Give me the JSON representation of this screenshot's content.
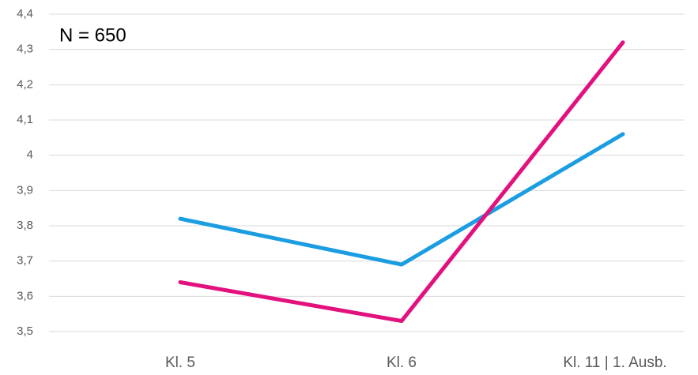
{
  "chart_data": {
    "type": "line",
    "annotation": "N =  650",
    "categories": [
      "Kl. 5",
      "Kl. 6",
      "Kl. 11 | 1. Ausb."
    ],
    "series": [
      {
        "color": "#1b9de2",
        "values": [
          3.82,
          3.69,
          4.06
        ]
      },
      {
        "color": "#e2117e",
        "values": [
          3.64,
          3.53,
          4.32
        ]
      }
    ],
    "ylim": [
      3.5,
      4.4
    ],
    "yticks": [
      {
        "value": 3.5,
        "label": "3,5"
      },
      {
        "value": 3.6,
        "label": "3,6"
      },
      {
        "value": 3.7,
        "label": "3,7"
      },
      {
        "value": 3.8,
        "label": "3,8"
      },
      {
        "value": 3.9,
        "label": "3,9"
      },
      4,
      {
        "value": 4.1,
        "label": "4,1"
      },
      {
        "value": 4.2,
        "label": "4,2"
      },
      {
        "value": 4.3,
        "label": "4,3"
      },
      {
        "value": 4.4,
        "label": "4,4"
      }
    ],
    "grid": true
  }
}
